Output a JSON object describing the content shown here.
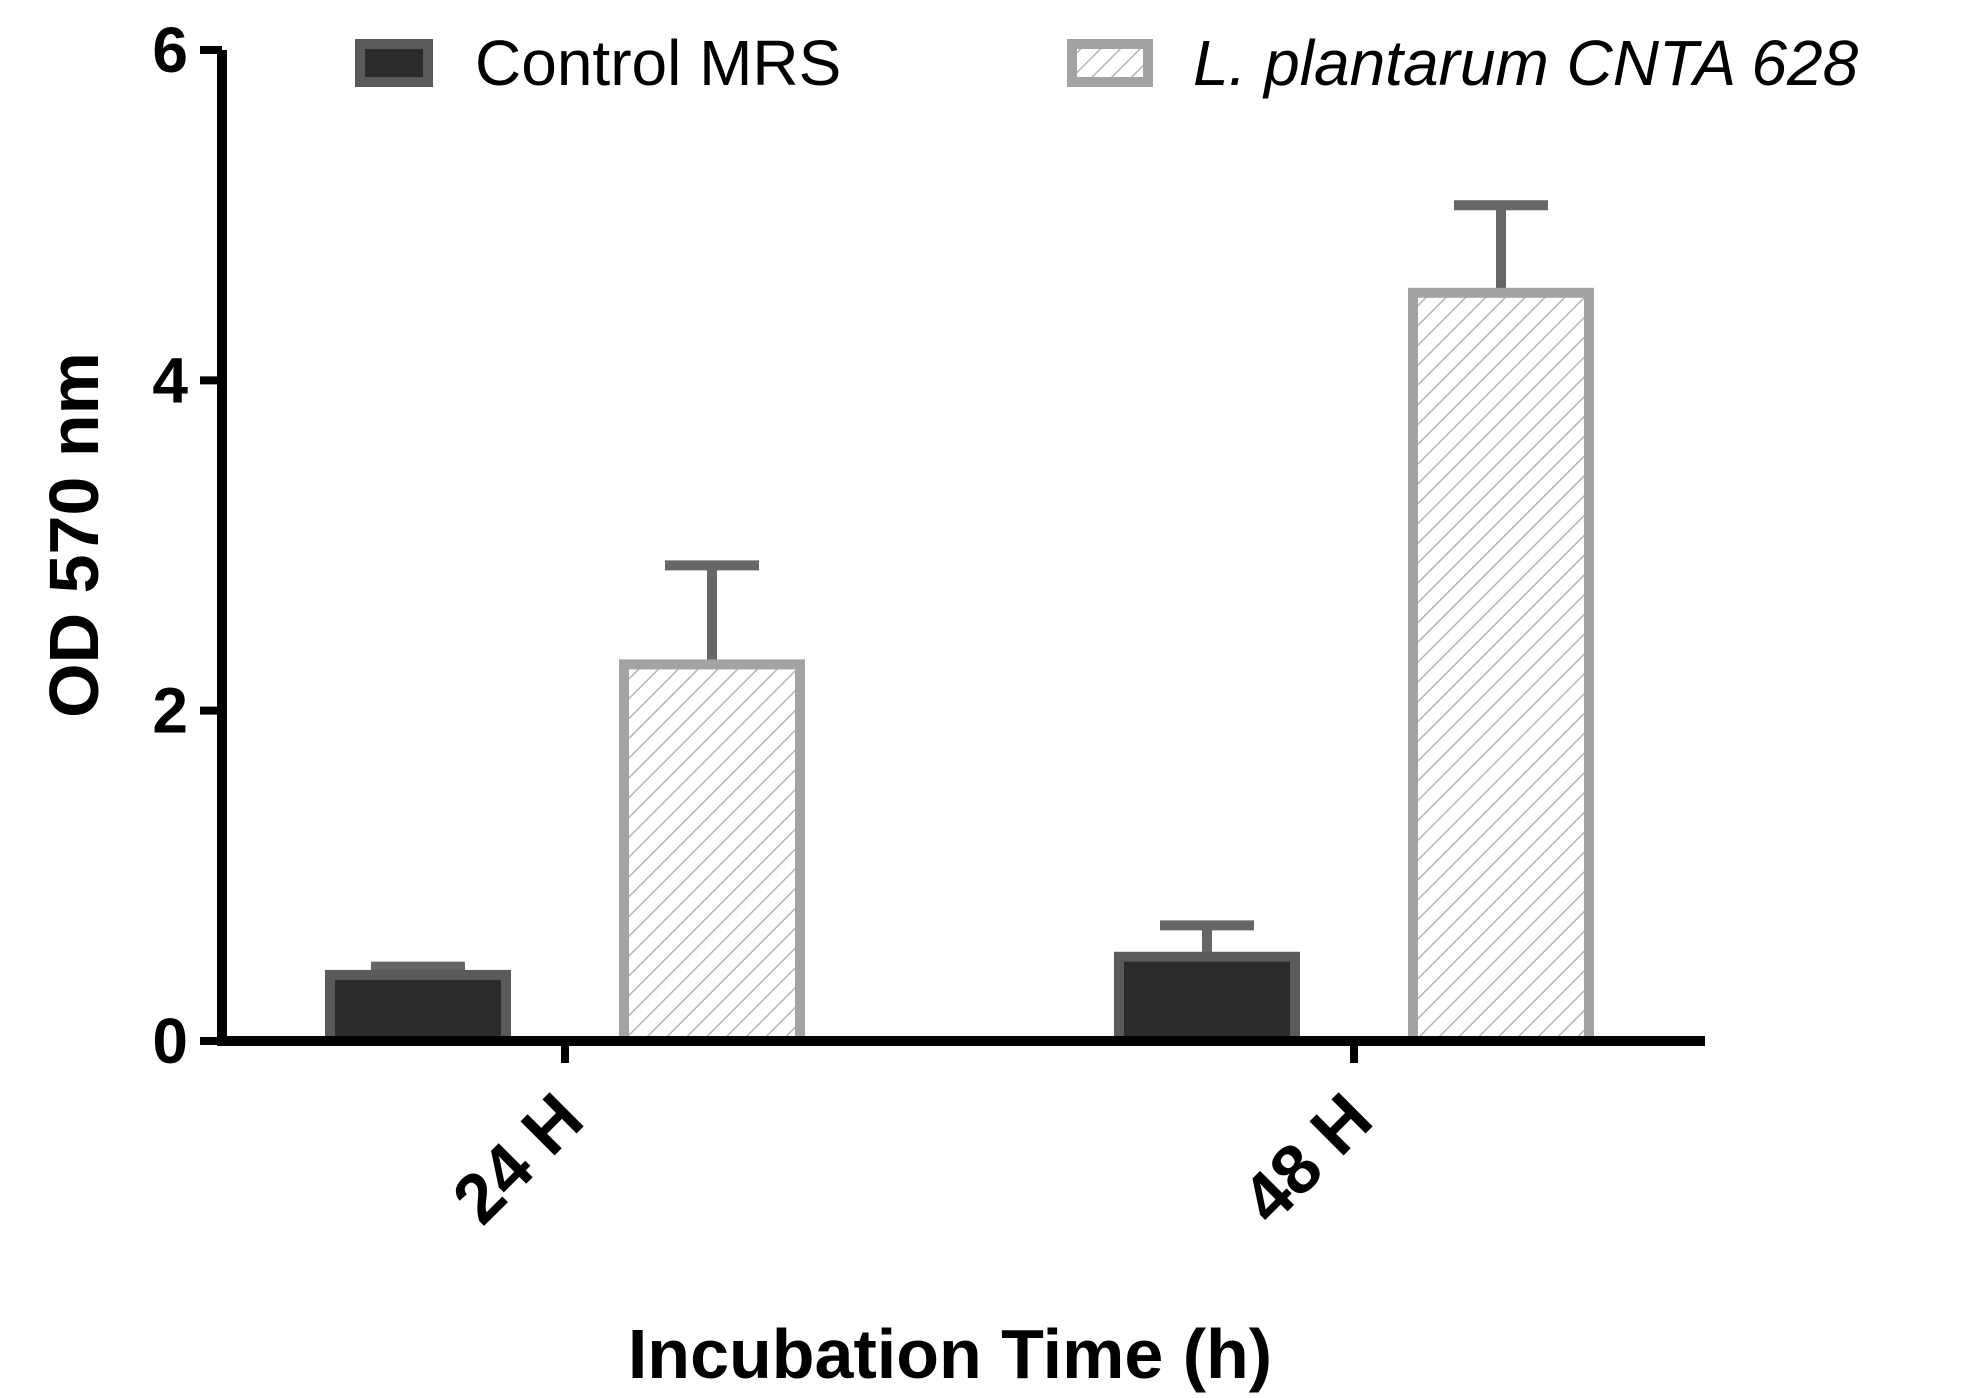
{
  "chart_data": {
    "type": "bar",
    "title": "",
    "xlabel": "Incubation Time  (h)",
    "ylabel": "OD 570 nm",
    "ylim": [
      0,
      6
    ],
    "yticks": [
      0,
      2,
      4,
      6
    ],
    "ytick_labels": [
      "0",
      "2",
      "4",
      "6"
    ],
    "categories": [
      "24 H",
      "48 H"
    ],
    "legend_position": "top",
    "series": [
      {
        "name": "Control MRS",
        "italic": false,
        "fill": "#2b2b2b",
        "border": "#5a5a5a",
        "pattern": "solid",
        "values": [
          0.4,
          0.51
        ],
        "errors": [
          0.05,
          0.19
        ]
      },
      {
        "name": "L. plantarum CNTA 628",
        "italic": true,
        "fill": "#ffffff",
        "border": "#a3a3a3",
        "pattern": "hatch",
        "values": [
          2.28,
          4.53
        ],
        "errors": [
          0.6,
          0.53
        ]
      }
    ],
    "error_bar_color": "#666666"
  }
}
